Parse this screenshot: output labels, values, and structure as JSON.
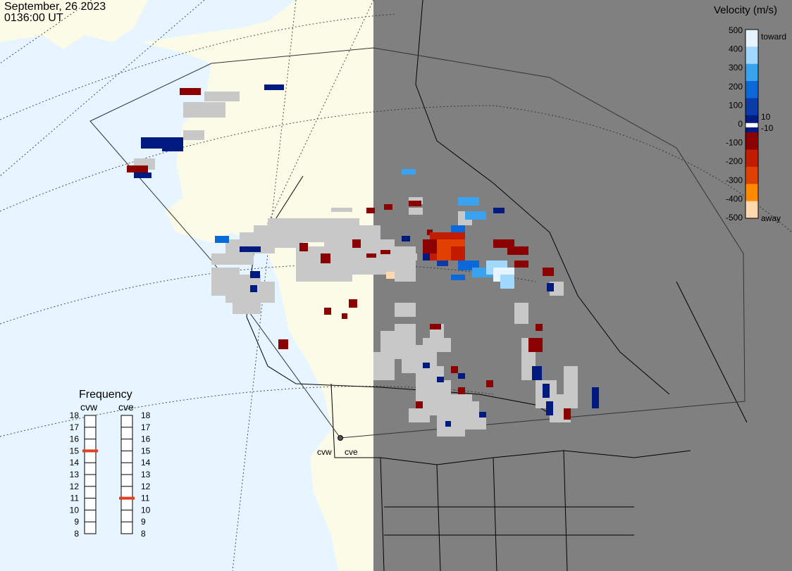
{
  "header": {
    "date": "September, 26 2023",
    "time": "0136:00 UT"
  },
  "colorbar": {
    "title": "Velocity (m/s)",
    "tick_labels": [
      "500",
      "400",
      "300",
      "200",
      "100",
      "0",
      "-100",
      "-200",
      "-300",
      "-400",
      "-500"
    ],
    "label_10": "10",
    "label_neg10": "-10",
    "label_toward": "toward",
    "label_away": "away",
    "colors": [
      "#e6f4ff",
      "#a0d8ff",
      "#3aa3f0",
      "#0b68d8",
      "#0a3ba8",
      "#001a80",
      "#8b0000",
      "#c21d00",
      "#e04000",
      "#ff8a00",
      "#ffd8b0"
    ]
  },
  "frequency": {
    "title": "Frequency",
    "left_label": "cvw",
    "right_label": "cve",
    "scale": [
      "18",
      "17",
      "16",
      "15",
      "14",
      "13",
      "12",
      "11",
      "10",
      "9",
      "8"
    ],
    "cvw_mhz": 15,
    "cve_mhz": 11
  },
  "map": {
    "radar_labels": [
      "cvw",
      "cve"
    ],
    "colors": {
      "ocean": "#e6f5ff",
      "land_day": "#fbfbe8",
      "night": "#808080",
      "ground_scatter": "#c8c8c8"
    }
  }
}
